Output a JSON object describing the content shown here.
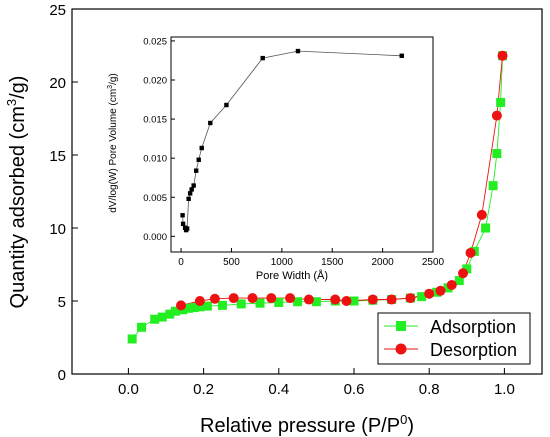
{
  "chart_data": [
    {
      "type": "scatter",
      "xlabel_main": "Relative pressure (P/P",
      "xlabel_sup": "0",
      "xlabel_tail": ")",
      "ylabel_main": "Quantity adsorbed (cm",
      "ylabel_sup": "3",
      "ylabel_tail": "/g)",
      "xlim": [
        -0.15,
        1.1
      ],
      "ylim": [
        0,
        25
      ],
      "xticks": [
        "0.0",
        "0.2",
        "0.4",
        "0.6",
        "0.8",
        "1.0"
      ],
      "yticks": [
        "0",
        "5",
        "10",
        "15",
        "20",
        "25"
      ],
      "legend_position": "bottom-right",
      "series": [
        {
          "name": "Adsorption",
          "color": "#22ee22",
          "marker": "square",
          "points": [
            [
              0.01,
              2.4
            ],
            [
              0.035,
              3.2
            ],
            [
              0.07,
              3.75
            ],
            [
              0.09,
              3.9
            ],
            [
              0.11,
              4.1
            ],
            [
              0.125,
              4.3
            ],
            [
              0.145,
              4.4
            ],
            [
              0.16,
              4.5
            ],
            [
              0.175,
              4.55
            ],
            [
              0.19,
              4.6
            ],
            [
              0.21,
              4.65
            ],
            [
              0.25,
              4.7
            ],
            [
              0.3,
              4.8
            ],
            [
              0.35,
              4.85
            ],
            [
              0.4,
              4.9
            ],
            [
              0.45,
              4.95
            ],
            [
              0.5,
              4.95
            ],
            [
              0.55,
              5.0
            ],
            [
              0.6,
              5.0
            ],
            [
              0.65,
              5.05
            ],
            [
              0.7,
              5.1
            ],
            [
              0.75,
              5.2
            ],
            [
              0.78,
              5.3
            ],
            [
              0.82,
              5.6
            ],
            [
              0.85,
              5.9
            ],
            [
              0.88,
              6.4
            ],
            [
              0.9,
              7.2
            ],
            [
              0.92,
              8.4
            ],
            [
              0.95,
              10.0
            ],
            [
              0.97,
              12.9
            ],
            [
              0.98,
              15.1
            ],
            [
              0.99,
              18.6
            ],
            [
              0.995,
              21.8
            ]
          ]
        },
        {
          "name": "Desorption",
          "color": "#ee1111",
          "marker": "circle",
          "points": [
            [
              0.995,
              21.8
            ],
            [
              0.98,
              17.7
            ],
            [
              0.94,
              10.9
            ],
            [
              0.91,
              8.3
            ],
            [
              0.89,
              6.9
            ],
            [
              0.86,
              6.1
            ],
            [
              0.83,
              5.7
            ],
            [
              0.8,
              5.5
            ],
            [
              0.75,
              5.2
            ],
            [
              0.7,
              5.1
            ],
            [
              0.65,
              5.1
            ],
            [
              0.58,
              5.0
            ],
            [
              0.55,
              5.1
            ],
            [
              0.48,
              5.1
            ],
            [
              0.43,
              5.2
            ],
            [
              0.38,
              5.2
            ],
            [
              0.33,
              5.2
            ],
            [
              0.28,
              5.2
            ],
            [
              0.23,
              5.15
            ],
            [
              0.19,
              5.0
            ],
            [
              0.14,
              4.7
            ]
          ]
        }
      ]
    },
    {
      "type": "line",
      "xlabel": "Pore Width (Å)",
      "ylabel_main": "dV/log(W) Pore Volume (cm",
      "ylabel_sup": "3",
      "ylabel_tail": "/g)",
      "xlim": [
        -100,
        2500
      ],
      "ylim": [
        -0.002,
        0.0255
      ],
      "xticks": [
        "0",
        "500",
        "1000",
        "1500",
        "2000",
        "2500"
      ],
      "yticks": [
        "0.000",
        "0.005",
        "0.010",
        "0.015",
        "0.020",
        "0.025"
      ],
      "color": "#000000",
      "marker": "square",
      "points": [
        [
          15,
          0.0027
        ],
        [
          20,
          0.0016
        ],
        [
          40,
          0.0011
        ],
        [
          50,
          0.0008
        ],
        [
          60,
          0.001
        ],
        [
          75,
          0.0048
        ],
        [
          90,
          0.0055
        ],
        [
          105,
          0.006
        ],
        [
          125,
          0.0065
        ],
        [
          150,
          0.0084
        ],
        [
          175,
          0.0098
        ],
        [
          205,
          0.0113
        ],
        [
          290,
          0.0145
        ],
        [
          450,
          0.0168
        ],
        [
          810,
          0.0228
        ],
        [
          1160,
          0.0237
        ],
        [
          2190,
          0.0231
        ]
      ]
    }
  ]
}
